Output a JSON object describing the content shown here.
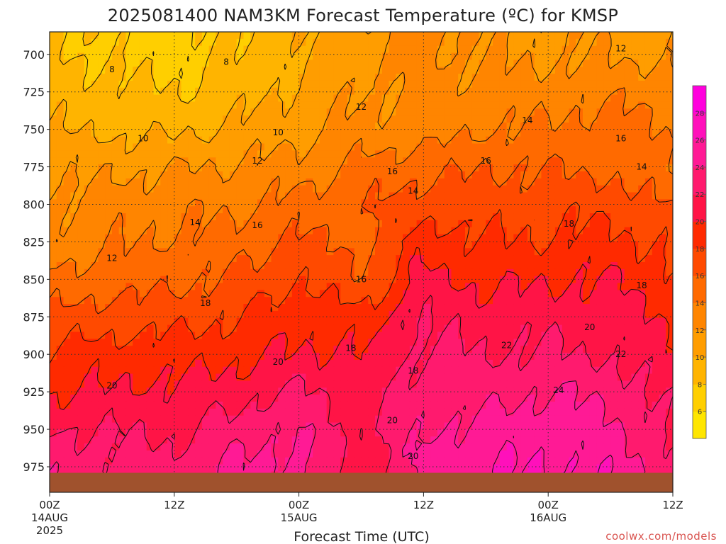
{
  "chart_data": {
    "type": "heatmap",
    "title": "2025081400 NAM3KM Forecast Temperature (ºC) for KMSP",
    "xlabel": "Forecast Time (UTC)",
    "x_range_hours": [
      0,
      60
    ],
    "x_ticks": [
      {
        "hour": 0,
        "label": "00Z",
        "sub1": "14AUG",
        "sub2": "2025"
      },
      {
        "hour": 12,
        "label": "12Z",
        "sub1": "",
        "sub2": ""
      },
      {
        "hour": 24,
        "label": "00Z",
        "sub1": "15AUG",
        "sub2": ""
      },
      {
        "hour": 36,
        "label": "12Z",
        "sub1": "",
        "sub2": ""
      },
      {
        "hour": 48,
        "label": "00Z",
        "sub1": "16AUG",
        "sub2": ""
      },
      {
        "hour": 60,
        "label": "12Z",
        "sub1": "",
        "sub2": ""
      }
    ],
    "y_range_hpa": [
      685,
      992
    ],
    "y_ticks": [
      700,
      725,
      750,
      775,
      800,
      825,
      850,
      875,
      900,
      925,
      950,
      975
    ],
    "y_tick_labels": [
      "700",
      "725",
      "750",
      "775",
      "800",
      "825",
      "850",
      "875",
      "900",
      "925",
      "950",
      "975"
    ],
    "surface_pressure_hpa": 979,
    "contour_levels": [
      4,
      6,
      8,
      10,
      12,
      14,
      16,
      18,
      20,
      22,
      24,
      26,
      28,
      30
    ],
    "colorbar_labels": [
      "6",
      "8",
      "10",
      "12",
      "14",
      "16",
      "18",
      "20",
      "22",
      "24",
      "26",
      "28"
    ],
    "colorbar_colors": [
      "#ffe600",
      "#ffcf00",
      "#ffb400",
      "#ff9d00",
      "#ff8500",
      "#ff6a00",
      "#ff4a00",
      "#ff2a00",
      "#ff1446",
      "#ff1a6e",
      "#ff1a95",
      "#ff10bb",
      "#ff00dd"
    ],
    "surface_color": "#a0522d",
    "grid": true,
    "x_hours": [
      0,
      6,
      12,
      18,
      24,
      30,
      36,
      42,
      48,
      54,
      60
    ],
    "levels_hpa": [
      700,
      725,
      750,
      775,
      800,
      825,
      850,
      875,
      900,
      925,
      950,
      975
    ],
    "temperature_c": [
      [
        8.5,
        7.5,
        7.3,
        8.2,
        9.5,
        11.6,
        12.6,
        11.8,
        11.6,
        11.8,
        11.4
      ],
      [
        9.0,
        8.7,
        8.0,
        9.0,
        10.6,
        12.0,
        12.3,
        12.8,
        13.0,
        13.5,
        13.5
      ],
      [
        10.0,
        9.6,
        9.5,
        10.4,
        11.4,
        12.5,
        13.0,
        13.9,
        14.3,
        15.0,
        13.9
      ],
      [
        11.5,
        11.6,
        11.8,
        12.3,
        12.8,
        14.5,
        15.2,
        16.0,
        15.8,
        15.5,
        14.1
      ],
      [
        12.3,
        12.9,
        13.5,
        13.5,
        14.7,
        15.5,
        17.3,
        17.0,
        17.3,
        17.5,
        15.8
      ],
      [
        12.5,
        13.7,
        14.3,
        15.0,
        16.3,
        15.6,
        19.2,
        18.0,
        18.2,
        18.6,
        17.6
      ],
      [
        14.5,
        15.1,
        15.5,
        16.3,
        18.0,
        16.1,
        20.6,
        19.5,
        19.8,
        20.1,
        18.6
      ],
      [
        16.3,
        17.0,
        17.3,
        17.8,
        19.6,
        18.5,
        21.8,
        21.0,
        21.3,
        20.8,
        19.8
      ],
      [
        18.5,
        18.9,
        19.2,
        19.5,
        20.3,
        20.0,
        22.6,
        22.0,
        22.3,
        21.8,
        20.5
      ],
      [
        19.8,
        20.2,
        20.5,
        21.0,
        22.4,
        21.3,
        23.0,
        23.2,
        24.0,
        23.5,
        21.1
      ],
      [
        22.0,
        22.0,
        21.5,
        23.0,
        24.1,
        20.9,
        23.8,
        24.8,
        25.3,
        24.5,
        21.8
      ],
      [
        23.3,
        22.8,
        22.8,
        24.4,
        24.7,
        21.0,
        24.6,
        25.9,
        26.1,
        25.6,
        22.5
      ]
    ],
    "contour_labels": [
      {
        "text": "8",
        "hour": 6,
        "hpa": 710
      },
      {
        "text": "8",
        "hour": 17,
        "hpa": 705
      },
      {
        "text": "10",
        "hour": 9,
        "hpa": 756
      },
      {
        "text": "10",
        "hour": 22,
        "hpa": 752
      },
      {
        "text": "12",
        "hour": 30,
        "hpa": 735
      },
      {
        "text": "12",
        "hour": 20,
        "hpa": 771
      },
      {
        "text": "12",
        "hour": 55,
        "hpa": 696
      },
      {
        "text": "12",
        "hour": 6,
        "hpa": 836
      },
      {
        "text": "14",
        "hour": 14,
        "hpa": 812
      },
      {
        "text": "14",
        "hour": 35,
        "hpa": 791
      },
      {
        "text": "14",
        "hour": 46,
        "hpa": 744
      },
      {
        "text": "14",
        "hour": 57,
        "hpa": 775
      },
      {
        "text": "16",
        "hour": 20,
        "hpa": 814
      },
      {
        "text": "16",
        "hour": 33,
        "hpa": 778
      },
      {
        "text": "16",
        "hour": 42,
        "hpa": 771
      },
      {
        "text": "16",
        "hour": 55,
        "hpa": 756
      },
      {
        "text": "16",
        "hour": 30,
        "hpa": 850
      },
      {
        "text": "18",
        "hour": 15,
        "hpa": 866
      },
      {
        "text": "18",
        "hour": 29,
        "hpa": 896
      },
      {
        "text": "18",
        "hour": 35,
        "hpa": 911
      },
      {
        "text": "18",
        "hour": 50,
        "hpa": 813
      },
      {
        "text": "18",
        "hour": 57,
        "hpa": 854
      },
      {
        "text": "20",
        "hour": 6,
        "hpa": 921
      },
      {
        "text": "20",
        "hour": 22,
        "hpa": 905
      },
      {
        "text": "20",
        "hour": 33,
        "hpa": 944
      },
      {
        "text": "20",
        "hour": 35,
        "hpa": 968
      },
      {
        "text": "20",
        "hour": 52,
        "hpa": 882
      },
      {
        "text": "22",
        "hour": 44,
        "hpa": 894
      },
      {
        "text": "22",
        "hour": 55,
        "hpa": 900
      },
      {
        "text": "24",
        "hour": 49,
        "hpa": 924
      }
    ]
  },
  "credit": "coolwx.com/models"
}
